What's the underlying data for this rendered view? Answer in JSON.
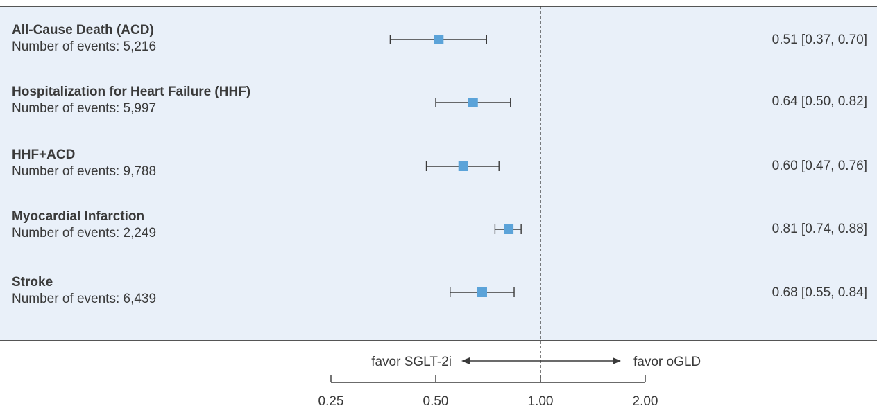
{
  "chart_data": {
    "type": "forest",
    "x_scale": "log2",
    "xlim": [
      0.25,
      2.0
    ],
    "reference_value": 1.0,
    "ticks": [
      {
        "value": 0.25,
        "label": "0.25"
      },
      {
        "value": 0.5,
        "label": "0.50"
      },
      {
        "value": 1.0,
        "label": "1.00"
      },
      {
        "value": 2.0,
        "label": "2.00"
      }
    ],
    "direction_left": "favor SGLT-2i",
    "direction_right": "favor oGLD",
    "rows": [
      {
        "name": "All-Cause Death (ACD)",
        "events": "Number of events: 5,216",
        "estimate": 0.51,
        "lower": 0.37,
        "upper": 0.7,
        "ci_text": "0.51 [0.37, 0.70]"
      },
      {
        "name": "Hospitalization for Heart Failure (HHF)",
        "events": "Number of events: 5,997",
        "estimate": 0.64,
        "lower": 0.5,
        "upper": 0.82,
        "ci_text": "0.64 [0.50, 0.82]"
      },
      {
        "name": "HHF+ACD",
        "events": "Number of events: 9,788",
        "estimate": 0.6,
        "lower": 0.47,
        "upper": 0.76,
        "ci_text": "0.60 [0.47, 0.76]"
      },
      {
        "name": "Myocardial Infarction",
        "events": "Number of events: 2,249",
        "estimate": 0.81,
        "lower": 0.74,
        "upper": 0.88,
        "ci_text": "0.81 [0.74, 0.88]"
      },
      {
        "name": "Stroke",
        "events": "Number of events: 6,439",
        "estimate": 0.68,
        "lower": 0.55,
        "upper": 0.84,
        "ci_text": "0.68 [0.55, 0.84]"
      }
    ],
    "colors": {
      "marker": "#5ba3d9",
      "panel": "#e9f0f9",
      "line": "#3a3a3a"
    }
  }
}
